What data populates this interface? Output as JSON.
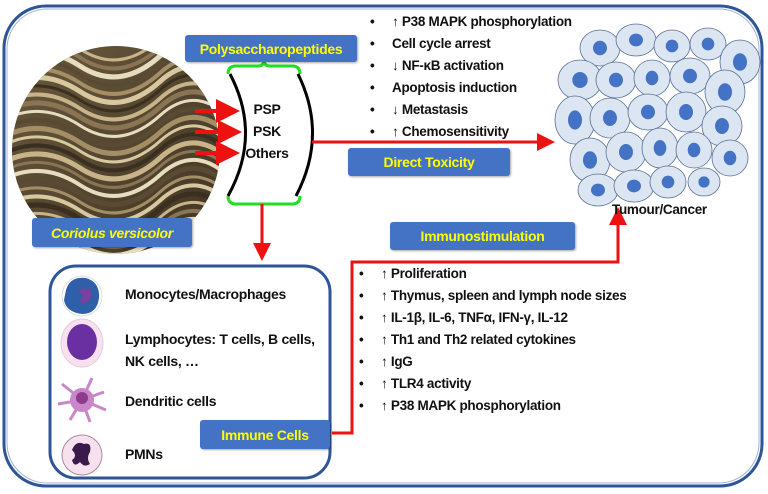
{
  "labels": {
    "polysaccharopeptides": "Polysaccharopeptides",
    "coriolus": "Coriolus versicolor",
    "direct_toxicity": "Direct Toxicity",
    "immunostimulation": "Immunostimulation",
    "immune_cells": "Immune Cells",
    "tumour": "Tumour/Cancer"
  },
  "compounds": [
    "PSP",
    "PSK",
    "Others"
  ],
  "direct_effects": [
    "↑ P38 MAPK phosphorylation",
    "Cell cycle arrest",
    "↓ NF-κB activation",
    "Apoptosis induction",
    "↓ Metastasis",
    "↑ Chemosensitivity"
  ],
  "immune_effects": [
    "↑ Proliferation",
    "↑ Thymus, spleen and lymph node sizes",
    "↑ IL-1β, IL-6, TNFα, IFN-γ, IL-12",
    "↑ Th1 and Th2 related cytokines",
    "↑ IgG",
    "↑ TLR4 activity",
    "↑ P38 MAPK phosphorylation"
  ],
  "cell_types": [
    {
      "label": "Monocytes/Macrophages",
      "icon": "monocyte-icon"
    },
    {
      "label": "Lymphocytes: T cells, B cells, NK cells, …",
      "icon": "lymphocyte-icon"
    },
    {
      "label": "Dendritic cells",
      "icon": "dendritic-cell-icon"
    },
    {
      "label": "PMNs",
      "icon": "pmn-icon"
    }
  ],
  "colors": {
    "frame": "#2e5597",
    "label_bg": "#4472c4",
    "label_text": "#ffff00",
    "arrow": "#ee1111",
    "bracket": "#22dd22",
    "cell_fill": "#dce6f2",
    "nucleus": "#4472c4"
  }
}
